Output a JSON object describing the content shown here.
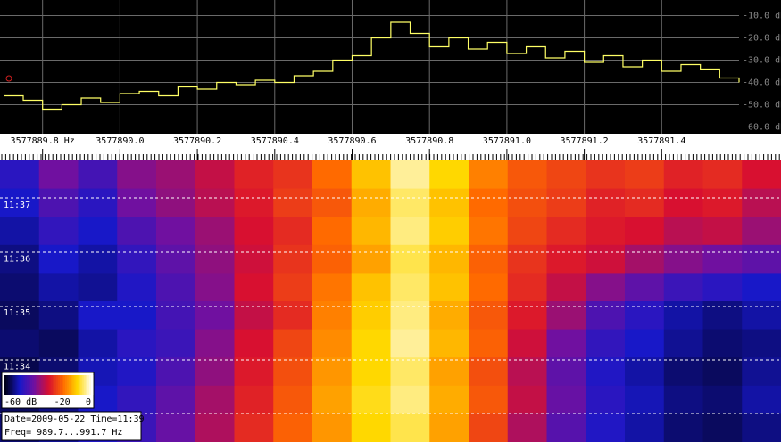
{
  "chart_data": {
    "type": "line",
    "x": [
      3577889.7,
      3577889.75,
      3577889.8,
      3577889.85,
      3577889.9,
      3577889.95,
      3577890.0,
      3577890.05,
      3577890.1,
      3577890.15,
      3577890.2,
      3577890.25,
      3577890.3,
      3577890.35,
      3577890.4,
      3577890.45,
      3577890.5,
      3577890.55,
      3577890.6,
      3577890.65,
      3577890.7,
      3577890.75,
      3577890.8,
      3577890.85,
      3577890.9,
      3577890.95,
      3577891.0,
      3577891.05,
      3577891.1,
      3577891.15,
      3577891.2,
      3577891.25,
      3577891.3,
      3577891.35,
      3577891.4,
      3577891.45,
      3577891.5,
      3577891.55,
      3577891.6
    ],
    "series": [
      {
        "color": "#ffff66",
        "values": [
          -46,
          -48,
          -52,
          -50,
          -47,
          -49,
          -45,
          -44,
          -46,
          -42,
          -43,
          -40,
          -41,
          -39,
          -40,
          -37,
          -35,
          -30,
          -28,
          -20,
          -13,
          -18,
          -24,
          -20,
          -25,
          -22,
          -27,
          -24,
          -29,
          -26,
          -31,
          -28,
          -33,
          -30,
          -35,
          -32,
          -34,
          -38,
          -40
        ]
      }
    ],
    "xlim": [
      3577889.69,
      3577891.6
    ],
    "xticks": [
      {
        "value": 3577889.8,
        "label": "3577889.8 Hz"
      },
      {
        "value": 3577890.0,
        "label": "3577890.0"
      },
      3577890.2,
      3577890.4,
      3577890.6,
      3577890.8,
      {
        "value": 3577891.0,
        "label": "3577891.0"
      },
      3577891.2,
      3577891.4
    ],
    "ylim": [
      -63,
      -3
    ],
    "yticks": [
      {
        "value": -10,
        "label": "-10.0 dB"
      },
      {
        "value": -20,
        "label": "-20.0 dB"
      },
      {
        "value": -30,
        "label": "-30.0 dB"
      },
      {
        "value": -40,
        "label": "-40.0 dB"
      },
      {
        "value": -50,
        "label": "-50.0 dB"
      },
      {
        "value": -60,
        "label": "-60.0 dB"
      }
    ],
    "grid": true
  },
  "waterfall": {
    "type": "heatmap",
    "colormap": [
      "#000018",
      "#1818c8",
      "#7010a0",
      "#d81030",
      "#ff6a00",
      "#ffd800",
      "#ffffff"
    ],
    "clim": [
      -60,
      0
    ],
    "colorbar_ticks": [
      {
        "value": -60,
        "label": "-60 dB"
      },
      -20,
      0
    ],
    "time_labels": [
      "11:37",
      "11:36",
      "11:35",
      "11:34"
    ],
    "values": [
      [
        -48,
        -40,
        -45,
        -38,
        -36,
        -32,
        -28,
        -26,
        -20,
        -12,
        -4,
        -10,
        -18,
        -22,
        -24,
        -26,
        -25,
        -28,
        -27,
        -30
      ],
      [
        -50,
        -44,
        -48,
        -40,
        -37,
        -33,
        -29,
        -25,
        -22,
        -14,
        -6,
        -12,
        -20,
        -23,
        -25,
        -28,
        -27,
        -30,
        -29,
        -33
      ],
      [
        -52,
        -47,
        -50,
        -44,
        -40,
        -36,
        -30,
        -27,
        -20,
        -13,
        -5,
        -11,
        -19,
        -24,
        -27,
        -29,
        -30,
        -33,
        -32,
        -36
      ],
      [
        -54,
        -50,
        -52,
        -47,
        -42,
        -37,
        -31,
        -26,
        -21,
        -15,
        -7,
        -13,
        -21,
        -26,
        -29,
        -31,
        -35,
        -38,
        -40,
        -42
      ],
      [
        -55,
        -52,
        -53,
        -49,
        -44,
        -38,
        -30,
        -25,
        -19,
        -12,
        -6,
        -12,
        -20,
        -27,
        -32,
        -38,
        -42,
        -46,
        -48,
        -50
      ],
      [
        -56,
        -54,
        -50,
        -50,
        -45,
        -40,
        -32,
        -27,
        -18,
        -11,
        -5,
        -14,
        -22,
        -29,
        -36,
        -44,
        -48,
        -52,
        -54,
        -52
      ],
      [
        -55,
        -56,
        -52,
        -48,
        -46,
        -38,
        -30,
        -24,
        -17,
        -10,
        -4,
        -13,
        -21,
        -31,
        -40,
        -47,
        -50,
        -53,
        -55,
        -54
      ],
      [
        -57,
        -55,
        -51,
        -49,
        -44,
        -37,
        -29,
        -23,
        -16,
        -10,
        -6,
        -15,
        -23,
        -33,
        -42,
        -49,
        -52,
        -55,
        -56,
        -53
      ],
      [
        -56,
        -54,
        -50,
        -47,
        -42,
        -35,
        -28,
        -22,
        -15,
        -9,
        -5,
        -14,
        -22,
        -32,
        -41,
        -48,
        -51,
        -54,
        -55,
        -52
      ],
      [
        -55,
        -53,
        -49,
        -46,
        -41,
        -34,
        -27,
        -21,
        -16,
        -10,
        -7,
        -15,
        -24,
        -34,
        -43,
        -49,
        -52,
        -55,
        -56,
        -54
      ]
    ]
  },
  "info": [
    "Date=2009-05-22 Time=11:39",
    "Freq= 989.7...991.7 Hz"
  ]
}
